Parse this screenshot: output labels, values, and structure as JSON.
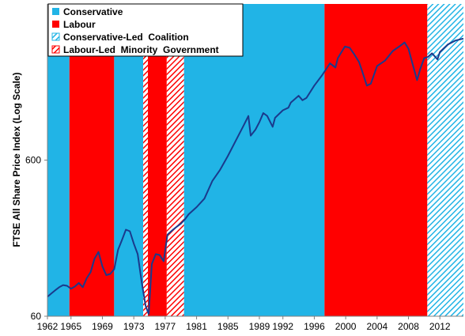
{
  "chart_data": {
    "type": "line",
    "title": "",
    "xlabel": "",
    "ylabel": "FTSE All Share Price Index (Log Scale)",
    "y_scale": "log",
    "ylim": [
      60,
      6000
    ],
    "xlim": [
      1962,
      2015
    ],
    "y_ticks": [
      "60",
      "600"
    ],
    "x_ticks": [
      "1962",
      "1965",
      "1969",
      "1973",
      "1977",
      "1981",
      "1985",
      "1989",
      "1992",
      "1996",
      "2000",
      "2004",
      "2008",
      "2012"
    ],
    "legend": {
      "position": "top-left",
      "entries": [
        {
          "label": "Conservative",
          "color": "#21b4e6",
          "pattern": "solid"
        },
        {
          "label": "Labour",
          "color": "#ff0000",
          "pattern": "solid"
        },
        {
          "label": "Conservative-Led  Coalition",
          "color": "#21b4e6",
          "pattern": "hatched"
        },
        {
          "label": "Labour-Led  Minority  Government",
          "color": "#ff0000",
          "pattern": "hatched"
        }
      ]
    },
    "periods": [
      {
        "party": "Conservative",
        "start": 1962.0,
        "end": 1964.8,
        "pattern": "solid"
      },
      {
        "party": "Labour",
        "start": 1964.8,
        "end": 1970.5,
        "pattern": "solid"
      },
      {
        "party": "Conservative",
        "start": 1970.5,
        "end": 1974.2,
        "pattern": "solid"
      },
      {
        "party": "Labour-Led Minority Government",
        "start": 1974.2,
        "end": 1974.8,
        "pattern": "hatched"
      },
      {
        "party": "Labour",
        "start": 1974.8,
        "end": 1977.2,
        "pattern": "solid"
      },
      {
        "party": "Labour-Led Minority Government",
        "start": 1977.2,
        "end": 1979.4,
        "pattern": "hatched"
      },
      {
        "party": "Conservative",
        "start": 1979.4,
        "end": 1997.3,
        "pattern": "solid"
      },
      {
        "party": "Labour",
        "start": 1997.3,
        "end": 2010.4,
        "pattern": "solid"
      },
      {
        "party": "Conservative-Led Coalition",
        "start": 2010.4,
        "end": 2015.0,
        "pattern": "hatched"
      }
    ],
    "series": [
      {
        "color": "#1a3a8c",
        "x": [
          1962.0,
          1962.5,
          1963.0,
          1963.5,
          1964.0,
          1964.5,
          1965.0,
          1965.5,
          1966.0,
          1966.5,
          1967.0,
          1967.5,
          1968.0,
          1968.5,
          1969.0,
          1969.5,
          1970.0,
          1970.5,
          1971.0,
          1971.5,
          1972.0,
          1972.5,
          1973.0,
          1973.5,
          1974.0,
          1974.5,
          1974.9,
          1975.3,
          1975.8,
          1976.3,
          1976.8,
          1977.3,
          1978.0,
          1978.5,
          1979.0,
          1979.5,
          1980.0,
          1981.0,
          1982.0,
          1983.0,
          1984.0,
          1985.0,
          1986.0,
          1987.0,
          1987.6,
          1987.9,
          1988.5,
          1989.0,
          1989.5,
          1990.0,
          1990.7,
          1991.0,
          1992.0,
          1992.7,
          1993.0,
          1994.0,
          1994.5,
          1995.0,
          1996.0,
          1997.0,
          1998.0,
          1998.7,
          1999.0,
          1999.9,
          2000.5,
          2001.0,
          2001.7,
          2002.0,
          2002.7,
          2003.2,
          2004.0,
          2005.0,
          2006.0,
          2007.0,
          2007.5,
          2008.0,
          2008.5,
          2009.1,
          2009.5,
          2010.0,
          2010.5,
          2011.0,
          2011.7,
          2012.0,
          2013.0,
          2014.0,
          2015.0
        ],
        "y": [
          80,
          84,
          88,
          92,
          95,
          94,
          90,
          93,
          98,
          92,
          105,
          115,
          140,
          155,
          125,
          110,
          112,
          120,
          160,
          185,
          215,
          210,
          175,
          150,
          100,
          70,
          62,
          130,
          150,
          148,
          135,
          200,
          215,
          225,
          235,
          250,
          270,
          300,
          340,
          440,
          520,
          640,
          800,
          1000,
          1150,
          860,
          940,
          1050,
          1200,
          1150,
          980,
          1120,
          1250,
          1300,
          1400,
          1550,
          1450,
          1500,
          1800,
          2100,
          2500,
          2350,
          2700,
          3200,
          3150,
          2900,
          2550,
          2300,
          1800,
          1850,
          2400,
          2600,
          3000,
          3250,
          3400,
          3100,
          2500,
          1950,
          2300,
          2700,
          2750,
          2900,
          2650,
          2950,
          3300,
          3500,
          3600
        ]
      }
    ]
  }
}
